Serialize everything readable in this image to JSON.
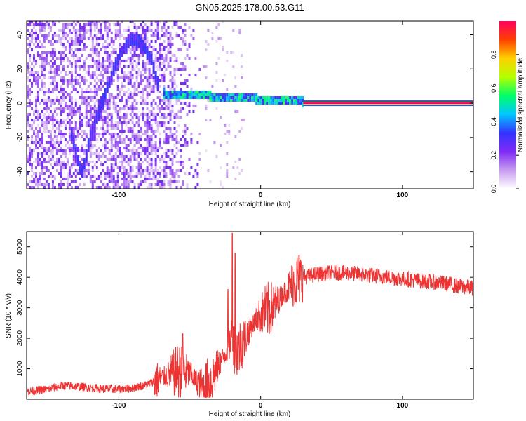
{
  "title": "GN05.2025.178.00.53.G11",
  "chart_data": [
    {
      "type": "heatmap",
      "xlabel": "Height of straight line (km)",
      "ylabel": "Frequency (Hz)",
      "xlim": [
        -165,
        150
      ],
      "ylim": [
        -50,
        48
      ],
      "x_ticks": [
        -100,
        0,
        100
      ],
      "y_ticks": [
        -40,
        -20,
        0,
        20,
        40
      ],
      "colorbar": {
        "label": "Normalized spectral amplitude",
        "range": [
          0,
          1
        ],
        "ticks": [
          0.0,
          0.2,
          0.4,
          0.6,
          0.8
        ],
        "colors": [
          "#ffffff",
          "#c79cf0",
          "#7f2cf5",
          "#3333ff",
          "#00c8ff",
          "#00ff66",
          "#b5ff00",
          "#ffd000",
          "#ff4000",
          "#ff0060"
        ]
      },
      "features": {
        "carrier_line": {
          "x_range": [
            30,
            150
          ],
          "frequency": 0,
          "amplitude": 1.0
        },
        "noisy_carrier": {
          "x_range": [
            -70,
            30
          ],
          "frequency_range": [
            0,
            5
          ],
          "amplitude_range": [
            0.3,
            0.6
          ]
        },
        "dispersion_curve": {
          "x": [
            -135,
            -130,
            -127,
            -125,
            -120,
            -110,
            -100,
            -92,
            -85,
            -78,
            -72
          ],
          "frequency": [
            -15,
            -33,
            -43,
            -36,
            -18,
            5,
            28,
            36,
            35,
            25,
            7
          ],
          "amplitude": 0.25
        },
        "scatter_region_x_range": [
          -165,
          -40
        ]
      }
    },
    {
      "type": "line",
      "xlabel": "Height of straight line (km)",
      "ylabel": "SNR (10 * v/v)",
      "xlim": [
        -165,
        150
      ],
      "ylim": [
        0,
        5500
      ],
      "x_ticks": [
        -100,
        0,
        100
      ],
      "y_ticks": [
        1000,
        2000,
        3000,
        4000,
        5000
      ],
      "series": [
        {
          "color": "#ee3333",
          "x": [
            -165,
            -150,
            -140,
            -130,
            -120,
            -110,
            -100,
            -90,
            -80,
            -70,
            -60,
            -50,
            -40,
            -35,
            -30,
            -25,
            -22,
            -20,
            -18,
            -15,
            -10,
            -5,
            0,
            5,
            10,
            15,
            20,
            25,
            30,
            35,
            40,
            50,
            60,
            70,
            80,
            90,
            100,
            110,
            120,
            130,
            140,
            150
          ],
          "y": [
            250,
            330,
            450,
            420,
            380,
            340,
            330,
            380,
            480,
            700,
            900,
            850,
            300,
            600,
            1100,
            1500,
            1800,
            2200,
            1500,
            1700,
            2100,
            2500,
            2800,
            2900,
            3100,
            3400,
            3700,
            3900,
            4000,
            4050,
            4100,
            4150,
            4150,
            4100,
            4050,
            4000,
            3950,
            3900,
            3850,
            3800,
            3700,
            3650
          ],
          "spikes": [
            {
              "x": -20,
              "y": 5450
            },
            {
              "x": -18,
              "y": 4800
            },
            {
              "x": -23,
              "y": 3600
            },
            {
              "x": -55,
              "y": 2150
            },
            {
              "x": -60,
              "y": 1700
            }
          ]
        }
      ]
    }
  ]
}
